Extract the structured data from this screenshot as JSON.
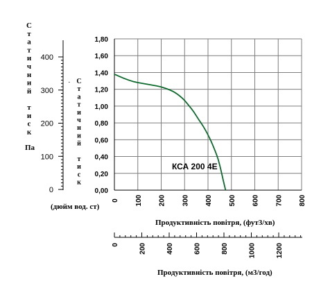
{
  "chart_data": {
    "type": "line",
    "xlabel": "Продуктивність повітря, (фут3/хв)",
    "ylabel": "(дюйм вод. ст)",
    "xlim": [
      0,
      800
    ],
    "ylim": [
      0,
      1.8
    ],
    "x_ticks": [
      "0",
      "100",
      "200",
      "300",
      "400",
      "500",
      "600",
      "700",
      "800"
    ],
    "y_ticks": [
      "0,00",
      "0,20",
      "0,40",
      "0,60",
      "0,80",
      "1,00",
      "1,20",
      "1,40",
      "1,60",
      "1,80"
    ],
    "grid": true,
    "series": [
      {
        "name": "КСА 200 4Е",
        "color": "#0b6a2b",
        "x": [
          0,
          40,
          80,
          120,
          160,
          200,
          240,
          260,
          280,
          300,
          320,
          340,
          360,
          380,
          400,
          420,
          440,
          450,
          460,
          470,
          475
        ],
        "y": [
          1.38,
          1.33,
          1.29,
          1.27,
          1.25,
          1.23,
          1.19,
          1.16,
          1.12,
          1.07,
          1.0,
          0.93,
          0.84,
          0.76,
          0.66,
          0.54,
          0.4,
          0.3,
          0.18,
          0.06,
          0.0
        ]
      }
    ],
    "secondary_axes": {
      "pa": {
        "label": [
          "С",
          "т",
          "а",
          "т",
          "и",
          "ч",
          "н",
          "и",
          "й",
          " ",
          "т",
          "и",
          "с",
          "к"
        ],
        "unit": "Па",
        "ticks": [
          "0",
          "100",
          "200",
          "300",
          "400"
        ]
      },
      "inwg": {
        "bullet": "·",
        "label": [
          "С",
          "т",
          "а",
          "т",
          "и",
          "ч",
          "н",
          "и",
          "й",
          " ",
          "т",
          "и",
          "с",
          "к"
        ]
      },
      "m3h": {
        "label": "Продуктивність повітря, (м3/год)",
        "ticks": [
          "0",
          "200",
          "400",
          "600",
          "800",
          "1000",
          "1200"
        ]
      }
    }
  }
}
